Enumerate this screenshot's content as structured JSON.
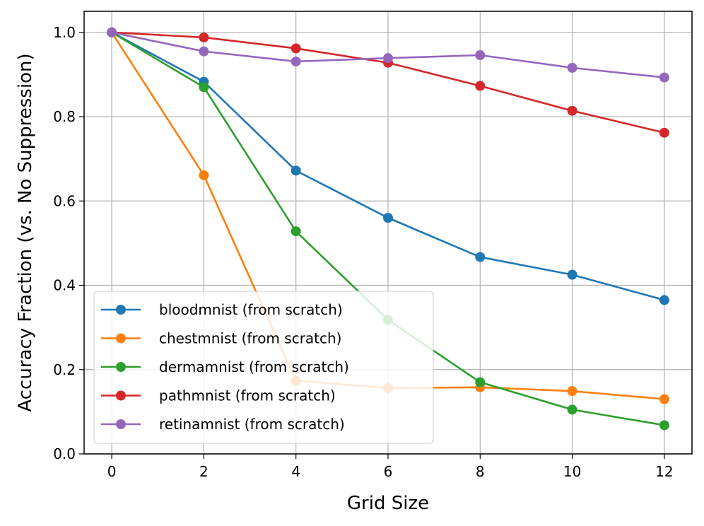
{
  "chart_data": {
    "type": "line",
    "title": "",
    "xlabel": "Grid Size",
    "ylabel": "Accuracy Fraction (vs. No Suppression)",
    "x": [
      0,
      2,
      4,
      6,
      8,
      10,
      12
    ],
    "xlim": [
      -0.6,
      12.6
    ],
    "ylim": [
      0.0,
      1.05
    ],
    "xticks": [
      0,
      2,
      4,
      6,
      8,
      10,
      12
    ],
    "xtick_labels": [
      "0",
      "2",
      "4",
      "6",
      "8",
      "10",
      "12"
    ],
    "yticks": [
      0.0,
      0.2,
      0.4,
      0.6,
      0.8,
      1.0
    ],
    "ytick_labels": [
      "0.0",
      "0.2",
      "0.4",
      "0.6",
      "0.8",
      "1.0"
    ],
    "grid": true,
    "legend_position": "lower-left",
    "series": [
      {
        "name": "bloodmnist (from scratch)",
        "color": "#1f77b4",
        "values": [
          1.0,
          0.883,
          0.672,
          0.56,
          0.467,
          0.425,
          0.365
        ]
      },
      {
        "name": "chestmnist (from scratch)",
        "color": "#ff7f0e",
        "values": [
          1.0,
          0.661,
          0.174,
          0.156,
          0.158,
          0.149,
          0.13
        ]
      },
      {
        "name": "dermamnist (from scratch)",
        "color": "#2ca02c",
        "values": [
          1.0,
          0.87,
          0.528,
          0.318,
          0.17,
          0.105,
          0.068
        ]
      },
      {
        "name": "pathmnist (from scratch)",
        "color": "#d62728",
        "values": [
          1.0,
          0.988,
          0.962,
          0.928,
          0.873,
          0.814,
          0.762
        ]
      },
      {
        "name": "retinamnist (from scratch)",
        "color": "#9467bd",
        "values": [
          1.0,
          0.955,
          0.931,
          0.939,
          0.946,
          0.916,
          0.893
        ]
      }
    ]
  }
}
